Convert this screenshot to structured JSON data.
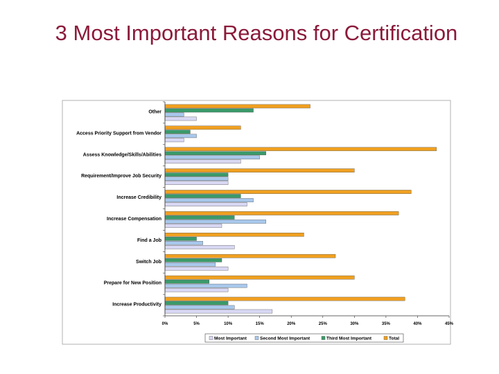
{
  "slide": {
    "title": "3 Most Important Reasons for Certification"
  },
  "chart_data": {
    "type": "bar",
    "orientation": "horizontal",
    "categories": [
      "Other",
      "Access Priority Support from Vendor",
      "Assess Knowledge/Skills/Abilities",
      "Requirement/Improve Job Security",
      "Increase Credibility",
      "Increase Compensation",
      "Find a Job",
      "Switch Job",
      "Prepare for New Position",
      "Increase Productivity"
    ],
    "series": [
      {
        "name": "Total",
        "color": "#f0a020",
        "values": [
          23,
          12,
          43,
          30,
          39,
          37,
          22,
          27,
          30,
          38
        ]
      },
      {
        "name": "Third Most Important",
        "color": "#3a9a6a",
        "values": [
          14,
          4,
          16,
          10,
          12,
          11,
          5,
          9,
          7,
          10
        ]
      },
      {
        "name": "Second Most Important",
        "color": "#a8c8ec",
        "values": [
          3,
          5,
          15,
          10,
          14,
          16,
          6,
          8,
          13,
          11
        ]
      },
      {
        "name": "Most Important",
        "color": "#d8d8f4",
        "values": [
          5,
          3,
          12,
          10,
          13,
          9,
          11,
          10,
          10,
          17
        ]
      }
    ],
    "legend_order": [
      "Most Important",
      "Second Most Important",
      "Third Most Important",
      "Total"
    ],
    "x_ticks": [
      "0%",
      "5%",
      "10%",
      "15%",
      "20%",
      "25%",
      "30%",
      "35%",
      "40%",
      "45%"
    ],
    "xlim": [
      0,
      45
    ],
    "legend": "bottom",
    "grid": false
  }
}
